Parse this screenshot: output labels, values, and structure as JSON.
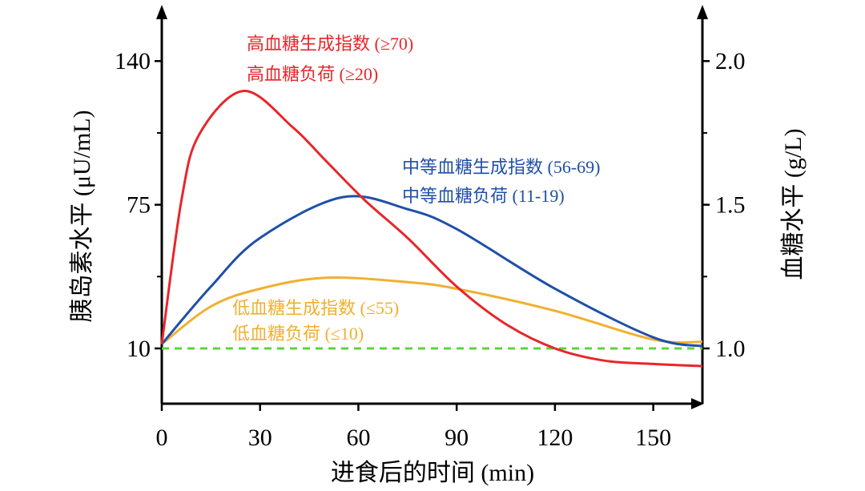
{
  "chart_data": {
    "type": "line",
    "xlabel": "进食后的时间 (min)",
    "ylabel": "胰岛素水平 (μU/mL)",
    "ylabel_right": "血糖水平 (g/L)",
    "xlim": [
      0,
      165
    ],
    "ylim": [
      -15,
      164
    ],
    "ylim_right": [
      0.93,
      2.15
    ],
    "x_ticks": [
      0,
      30,
      60,
      90,
      120,
      150
    ],
    "y_ticks": [
      10,
      75,
      140
    ],
    "y_ticks_right": [
      "1.0",
      "1.5",
      "2.0"
    ],
    "grid": false,
    "colors": {
      "high": "#e8262a",
      "medium": "#1f4fa8",
      "low": "#f0b030",
      "baseline": "#5ad43c",
      "axis": "#000000"
    },
    "series": [
      {
        "key": "high",
        "x": [
          0,
          6,
          11.5,
          25,
          40,
          50,
          62,
          75,
          90,
          105,
          120,
          135,
          150,
          165
        ],
        "y": [
          12,
          77,
          107,
          126.5,
          110,
          95,
          77,
          60,
          38,
          21,
          10,
          4.5,
          3,
          2
        ]
      },
      {
        "key": "medium",
        "x": [
          0,
          15,
          30,
          55,
          75,
          90,
          120,
          150,
          165
        ],
        "y": [
          12,
          38,
          60,
          78.4,
          73,
          64,
          37,
          15,
          11
        ]
      },
      {
        "key": "low",
        "x": [
          0,
          15,
          30,
          50,
          75,
          90,
          120,
          150,
          165
        ],
        "y": [
          12,
          29,
          37,
          42,
          40,
          37,
          27,
          14,
          13
        ]
      },
      {
        "key": "baseline",
        "x": [
          0,
          165
        ],
        "y": [
          10,
          10
        ],
        "style": "dashed"
      }
    ],
    "annotations": [
      {
        "key": "high",
        "lines": [
          "高血糖生成指数 (≥70)",
          "高血糖负荷 (≥20)"
        ]
      },
      {
        "key": "medium",
        "lines": [
          "中等血糖生成指数 (56-69)",
          "中等血糖负荷 (11-19)"
        ]
      },
      {
        "key": "low",
        "lines": [
          "低血糖生成指数 (≤55)",
          "低血糖负荷 (≤10)"
        ]
      }
    ]
  }
}
